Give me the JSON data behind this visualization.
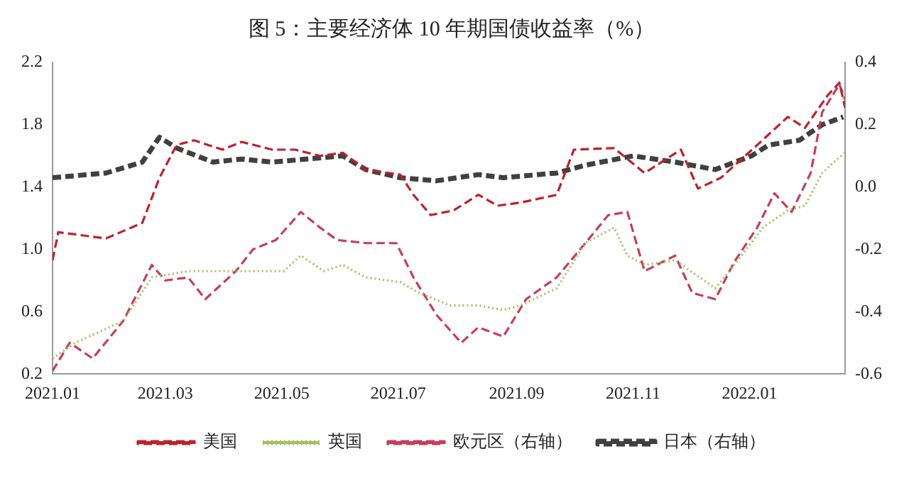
{
  "chart_data": {
    "type": "line",
    "title": "图 5：主要经济体 10 年期国债收益率（%）",
    "xlim": [
      "2021-01-01",
      "2022-02-20"
    ],
    "xticks": [
      {
        "value": "2021-01-01",
        "label": "2021.01"
      },
      {
        "value": "2021-03-01",
        "label": "2021.03"
      },
      {
        "value": "2021-05-01",
        "label": "2021.05"
      },
      {
        "value": "2021-07-01",
        "label": "2021.07"
      },
      {
        "value": "2021-09-01",
        "label": "2021.09"
      },
      {
        "value": "2021-11-01",
        "label": "2021.11"
      },
      {
        "value": "2022-01-01",
        "label": "2022.01"
      }
    ],
    "ylim": [
      0.2,
      2.2
    ],
    "yticks": [
      {
        "value": 0.2,
        "label": "0.2"
      },
      {
        "value": 0.6,
        "label": "0.6"
      },
      {
        "value": 1,
        "label": "1.0"
      },
      {
        "value": 1.4,
        "label": "1.4"
      },
      {
        "value": 1.8,
        "label": "1.8"
      },
      {
        "value": 2.2,
        "label": "2.2"
      }
    ],
    "y2lim": [
      -0.6,
      0.4
    ],
    "y2ticks": [
      {
        "value": -0.6,
        "label": "-0.6"
      },
      {
        "value": -0.4,
        "label": "-0.4"
      },
      {
        "value": -0.2,
        "label": "-0.2"
      },
      {
        "value": 0,
        "label": "0.0"
      },
      {
        "value": 0.2,
        "label": "0.2"
      },
      {
        "value": 0.4,
        "label": "0.4"
      }
    ],
    "grid": false,
    "legend": "bottom",
    "marker": "none",
    "series": [
      {
        "name": "美国",
        "color": "#c0202a",
        "line_style": "dashed",
        "x": [
          "2021-01-01",
          "2021-01-04",
          "2021-01-29",
          "2021-02-17",
          "2021-02-26",
          "2021-03-07",
          "2021-03-16",
          "2021-03-31",
          "2021-04-10",
          "2021-04-26",
          "2021-05-08",
          "2021-05-21",
          "2021-06-02",
          "2021-06-14",
          "2021-07-02",
          "2021-07-09",
          "2021-07-18",
          "2021-07-30",
          "2021-08-12",
          "2021-08-22",
          "2021-09-03",
          "2021-09-22",
          "2021-10-01",
          "2021-10-22",
          "2021-11-07",
          "2021-11-26",
          "2021-12-05",
          "2021-12-17",
          "2022-01-05",
          "2022-01-21",
          "2022-01-30",
          "2022-02-11",
          "2022-02-17",
          "2022-02-20"
        ],
        "values": [
          0.93,
          1.11,
          1.07,
          1.17,
          1.46,
          1.67,
          1.7,
          1.64,
          1.69,
          1.64,
          1.64,
          1.6,
          1.62,
          1.51,
          1.48,
          1.35,
          1.22,
          1.25,
          1.35,
          1.28,
          1.3,
          1.35,
          1.64,
          1.65,
          1.49,
          1.64,
          1.39,
          1.46,
          1.67,
          1.85,
          1.78,
          1.99,
          2.07,
          1.91
        ]
      },
      {
        "name": "英国",
        "color": "#a4bf5a",
        "line_style": "dotted",
        "x": [
          "2021-01-01",
          "2021-01-13",
          "2021-02-07",
          "2021-02-22",
          "2021-03-13",
          "2021-03-31",
          "2021-04-16",
          "2021-05-02",
          "2021-05-11",
          "2021-05-23",
          "2021-06-02",
          "2021-06-14",
          "2021-07-02",
          "2021-07-12",
          "2021-07-28",
          "2021-08-12",
          "2021-08-25",
          "2021-09-03",
          "2021-09-22",
          "2021-10-07",
          "2021-10-22",
          "2021-10-29",
          "2021-11-07",
          "2021-11-23",
          "2021-12-14",
          "2021-12-24",
          "2022-01-08",
          "2022-01-21",
          "2022-01-30",
          "2022-02-08",
          "2022-02-15",
          "2022-02-20"
        ],
        "values": [
          0.3,
          0.4,
          0.54,
          0.82,
          0.86,
          0.86,
          0.86,
          0.86,
          0.96,
          0.86,
          0.9,
          0.82,
          0.79,
          0.72,
          0.64,
          0.64,
          0.61,
          0.64,
          0.75,
          1.04,
          1.14,
          0.96,
          0.9,
          0.93,
          0.75,
          0.9,
          1.14,
          1.25,
          1.28,
          1.49,
          1.57,
          1.62
        ]
      },
      {
        "name": "欧元区（右轴）",
        "color": "#c83c5a",
        "line_style": "dashed",
        "axis": "y2",
        "x": [
          "2021-01-01",
          "2021-01-10",
          "2021-01-22",
          "2021-02-07",
          "2021-02-22",
          "2021-03-01",
          "2021-03-13",
          "2021-03-22",
          "2021-04-07",
          "2021-04-16",
          "2021-04-28",
          "2021-05-11",
          "2021-05-21",
          "2021-05-30",
          "2021-06-14",
          "2021-06-30",
          "2021-07-09",
          "2021-07-21",
          "2021-08-03",
          "2021-08-12",
          "2021-08-25",
          "2021-09-06",
          "2021-09-22",
          "2021-10-07",
          "2021-10-19",
          "2021-10-29",
          "2021-11-07",
          "2021-11-23",
          "2021-12-02",
          "2021-12-14",
          "2021-12-24",
          "2022-01-05",
          "2022-01-14",
          "2022-01-23",
          "2022-02-02",
          "2022-02-08",
          "2022-02-17",
          "2022-02-20"
        ],
        "values": [
          -0.59,
          -0.5,
          -0.55,
          -0.43,
          -0.25,
          -0.3,
          -0.29,
          -0.36,
          -0.27,
          -0.2,
          -0.17,
          -0.08,
          -0.13,
          -0.17,
          -0.18,
          -0.18,
          -0.29,
          -0.41,
          -0.5,
          -0.45,
          -0.48,
          -0.36,
          -0.29,
          -0.18,
          -0.09,
          -0.08,
          -0.27,
          -0.22,
          -0.34,
          -0.36,
          -0.24,
          -0.13,
          -0.02,
          -0.08,
          0.045,
          0.24,
          0.33,
          0.28
        ]
      },
      {
        "name": "日本（右轴）",
        "color": "#404040",
        "line_style": "dashed",
        "axis": "y2",
        "x": [
          "2021-01-01",
          "2021-01-29",
          "2021-02-17",
          "2021-02-26",
          "2021-03-07",
          "2021-03-26",
          "2021-04-10",
          "2021-04-26",
          "2021-06-02",
          "2021-06-14",
          "2021-07-02",
          "2021-07-21",
          "2021-08-12",
          "2021-08-25",
          "2021-09-22",
          "2021-10-07",
          "2021-11-01",
          "2021-11-23",
          "2021-12-14",
          "2022-01-02",
          "2022-01-11",
          "2022-01-27",
          "2022-02-08",
          "2022-02-19"
        ],
        "values": [
          0.03,
          0.045,
          0.08,
          0.16,
          0.125,
          0.08,
          0.09,
          0.08,
          0.1,
          0.056,
          0.03,
          0.02,
          0.04,
          0.03,
          0.045,
          0.07,
          0.1,
          0.08,
          0.056,
          0.1,
          0.135,
          0.15,
          0.2,
          0.225
        ]
      }
    ]
  }
}
